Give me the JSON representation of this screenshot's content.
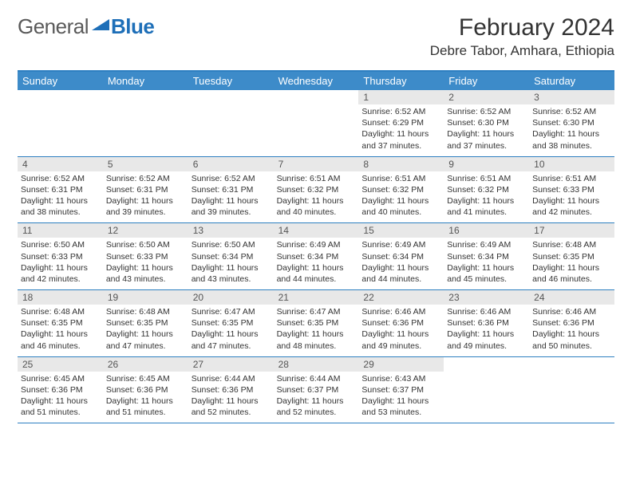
{
  "brand": {
    "part1": "General",
    "part2": "Blue"
  },
  "title": {
    "month": "February 2024",
    "location": "Debre Tabor, Amhara, Ethiopia"
  },
  "colors": {
    "header_bg": "#3d8bc9",
    "border": "#2d7fc1",
    "daynum_bg": "#e8e8e8",
    "brand_blue": "#1e6fb8",
    "brand_gray": "#5a5a5a",
    "text": "#333333"
  },
  "daynames": [
    "Sunday",
    "Monday",
    "Tuesday",
    "Wednesday",
    "Thursday",
    "Friday",
    "Saturday"
  ],
  "weeks": [
    [
      {
        "empty": true
      },
      {
        "empty": true
      },
      {
        "empty": true
      },
      {
        "empty": true
      },
      {
        "day": "1",
        "sunrise": "Sunrise: 6:52 AM",
        "sunset": "Sunset: 6:29 PM",
        "daylight1": "Daylight: 11 hours",
        "daylight2": "and 37 minutes."
      },
      {
        "day": "2",
        "sunrise": "Sunrise: 6:52 AM",
        "sunset": "Sunset: 6:30 PM",
        "daylight1": "Daylight: 11 hours",
        "daylight2": "and 37 minutes."
      },
      {
        "day": "3",
        "sunrise": "Sunrise: 6:52 AM",
        "sunset": "Sunset: 6:30 PM",
        "daylight1": "Daylight: 11 hours",
        "daylight2": "and 38 minutes."
      }
    ],
    [
      {
        "day": "4",
        "sunrise": "Sunrise: 6:52 AM",
        "sunset": "Sunset: 6:31 PM",
        "daylight1": "Daylight: 11 hours",
        "daylight2": "and 38 minutes."
      },
      {
        "day": "5",
        "sunrise": "Sunrise: 6:52 AM",
        "sunset": "Sunset: 6:31 PM",
        "daylight1": "Daylight: 11 hours",
        "daylight2": "and 39 minutes."
      },
      {
        "day": "6",
        "sunrise": "Sunrise: 6:52 AM",
        "sunset": "Sunset: 6:31 PM",
        "daylight1": "Daylight: 11 hours",
        "daylight2": "and 39 minutes."
      },
      {
        "day": "7",
        "sunrise": "Sunrise: 6:51 AM",
        "sunset": "Sunset: 6:32 PM",
        "daylight1": "Daylight: 11 hours",
        "daylight2": "and 40 minutes."
      },
      {
        "day": "8",
        "sunrise": "Sunrise: 6:51 AM",
        "sunset": "Sunset: 6:32 PM",
        "daylight1": "Daylight: 11 hours",
        "daylight2": "and 40 minutes."
      },
      {
        "day": "9",
        "sunrise": "Sunrise: 6:51 AM",
        "sunset": "Sunset: 6:32 PM",
        "daylight1": "Daylight: 11 hours",
        "daylight2": "and 41 minutes."
      },
      {
        "day": "10",
        "sunrise": "Sunrise: 6:51 AM",
        "sunset": "Sunset: 6:33 PM",
        "daylight1": "Daylight: 11 hours",
        "daylight2": "and 42 minutes."
      }
    ],
    [
      {
        "day": "11",
        "sunrise": "Sunrise: 6:50 AM",
        "sunset": "Sunset: 6:33 PM",
        "daylight1": "Daylight: 11 hours",
        "daylight2": "and 42 minutes."
      },
      {
        "day": "12",
        "sunrise": "Sunrise: 6:50 AM",
        "sunset": "Sunset: 6:33 PM",
        "daylight1": "Daylight: 11 hours",
        "daylight2": "and 43 minutes."
      },
      {
        "day": "13",
        "sunrise": "Sunrise: 6:50 AM",
        "sunset": "Sunset: 6:34 PM",
        "daylight1": "Daylight: 11 hours",
        "daylight2": "and 43 minutes."
      },
      {
        "day": "14",
        "sunrise": "Sunrise: 6:49 AM",
        "sunset": "Sunset: 6:34 PM",
        "daylight1": "Daylight: 11 hours",
        "daylight2": "and 44 minutes."
      },
      {
        "day": "15",
        "sunrise": "Sunrise: 6:49 AM",
        "sunset": "Sunset: 6:34 PM",
        "daylight1": "Daylight: 11 hours",
        "daylight2": "and 44 minutes."
      },
      {
        "day": "16",
        "sunrise": "Sunrise: 6:49 AM",
        "sunset": "Sunset: 6:34 PM",
        "daylight1": "Daylight: 11 hours",
        "daylight2": "and 45 minutes."
      },
      {
        "day": "17",
        "sunrise": "Sunrise: 6:48 AM",
        "sunset": "Sunset: 6:35 PM",
        "daylight1": "Daylight: 11 hours",
        "daylight2": "and 46 minutes."
      }
    ],
    [
      {
        "day": "18",
        "sunrise": "Sunrise: 6:48 AM",
        "sunset": "Sunset: 6:35 PM",
        "daylight1": "Daylight: 11 hours",
        "daylight2": "and 46 minutes."
      },
      {
        "day": "19",
        "sunrise": "Sunrise: 6:48 AM",
        "sunset": "Sunset: 6:35 PM",
        "daylight1": "Daylight: 11 hours",
        "daylight2": "and 47 minutes."
      },
      {
        "day": "20",
        "sunrise": "Sunrise: 6:47 AM",
        "sunset": "Sunset: 6:35 PM",
        "daylight1": "Daylight: 11 hours",
        "daylight2": "and 47 minutes."
      },
      {
        "day": "21",
        "sunrise": "Sunrise: 6:47 AM",
        "sunset": "Sunset: 6:35 PM",
        "daylight1": "Daylight: 11 hours",
        "daylight2": "and 48 minutes."
      },
      {
        "day": "22",
        "sunrise": "Sunrise: 6:46 AM",
        "sunset": "Sunset: 6:36 PM",
        "daylight1": "Daylight: 11 hours",
        "daylight2": "and 49 minutes."
      },
      {
        "day": "23",
        "sunrise": "Sunrise: 6:46 AM",
        "sunset": "Sunset: 6:36 PM",
        "daylight1": "Daylight: 11 hours",
        "daylight2": "and 49 minutes."
      },
      {
        "day": "24",
        "sunrise": "Sunrise: 6:46 AM",
        "sunset": "Sunset: 6:36 PM",
        "daylight1": "Daylight: 11 hours",
        "daylight2": "and 50 minutes."
      }
    ],
    [
      {
        "day": "25",
        "sunrise": "Sunrise: 6:45 AM",
        "sunset": "Sunset: 6:36 PM",
        "daylight1": "Daylight: 11 hours",
        "daylight2": "and 51 minutes."
      },
      {
        "day": "26",
        "sunrise": "Sunrise: 6:45 AM",
        "sunset": "Sunset: 6:36 PM",
        "daylight1": "Daylight: 11 hours",
        "daylight2": "and 51 minutes."
      },
      {
        "day": "27",
        "sunrise": "Sunrise: 6:44 AM",
        "sunset": "Sunset: 6:36 PM",
        "daylight1": "Daylight: 11 hours",
        "daylight2": "and 52 minutes."
      },
      {
        "day": "28",
        "sunrise": "Sunrise: 6:44 AM",
        "sunset": "Sunset: 6:37 PM",
        "daylight1": "Daylight: 11 hours",
        "daylight2": "and 52 minutes."
      },
      {
        "day": "29",
        "sunrise": "Sunrise: 6:43 AM",
        "sunset": "Sunset: 6:37 PM",
        "daylight1": "Daylight: 11 hours",
        "daylight2": "and 53 minutes."
      },
      {
        "empty": true
      },
      {
        "empty": true
      }
    ]
  ]
}
